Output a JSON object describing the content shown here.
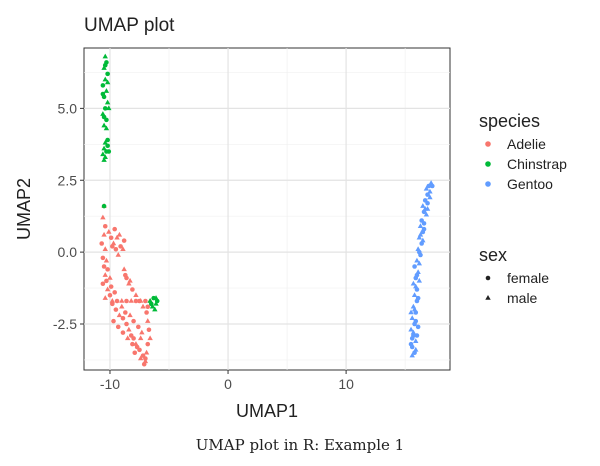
{
  "chart_data": {
    "type": "scatter",
    "title": "UMAP plot",
    "xlabel": "UMAP1",
    "ylabel": "UMAP2",
    "xlim": [
      -12.2,
      18.8
    ],
    "ylim": [
      -4.1,
      7.1
    ],
    "x_ticks": [
      -10,
      0,
      10
    ],
    "y_ticks": [
      -2.5,
      0.0,
      2.5,
      5.0
    ],
    "x_tick_labels": [
      "-10",
      "0",
      "10"
    ],
    "y_tick_labels": [
      "-2.5",
      "0.0",
      "2.5",
      "5.0"
    ],
    "grid": true,
    "legend_placement": "right",
    "color_legend": {
      "title": "species",
      "entries": [
        {
          "label": "Adelie",
          "color": "#F8766D"
        },
        {
          "label": "Chinstrap",
          "color": "#00BA38"
        },
        {
          "label": "Gentoo",
          "color": "#619CFF"
        }
      ]
    },
    "shape_legend": {
      "title": "sex",
      "entries": [
        {
          "label": "female",
          "shape": "circle"
        },
        {
          "label": "male",
          "shape": "triangle"
        }
      ]
    },
    "series": [
      {
        "name": "Adelie",
        "color": "#F8766D",
        "points": [
          [
            -10.5,
            1.6,
            "m"
          ],
          [
            -10.6,
            1.2,
            "m"
          ],
          [
            -10.4,
            0.9,
            "f"
          ],
          [
            -10.5,
            0.6,
            "m"
          ],
          [
            -10.7,
            0.3,
            "f"
          ],
          [
            -10.4,
            0.1,
            "m"
          ],
          [
            -10.6,
            -0.2,
            "f"
          ],
          [
            -10.5,
            -0.5,
            "f"
          ],
          [
            -10.4,
            -0.8,
            "m"
          ],
          [
            -10.3,
            -1.0,
            "f"
          ],
          [
            -10.6,
            -1.1,
            "f"
          ],
          [
            -10.2,
            -1.3,
            "m"
          ],
          [
            -10.0,
            -1.5,
            "f"
          ],
          [
            -10.4,
            -1.6,
            "m"
          ],
          [
            -9.8,
            -1.8,
            "f"
          ],
          [
            -9.5,
            -2.0,
            "f"
          ],
          [
            -9.2,
            -2.2,
            "m"
          ],
          [
            -8.9,
            -2.3,
            "f"
          ],
          [
            -8.6,
            -2.5,
            "f"
          ],
          [
            -8.4,
            -2.7,
            "m"
          ],
          [
            -8.2,
            -2.9,
            "f"
          ],
          [
            -8.0,
            -3.0,
            "f"
          ],
          [
            -7.8,
            -3.2,
            "m"
          ],
          [
            -7.5,
            -3.4,
            "f"
          ],
          [
            -7.2,
            -3.6,
            "f"
          ],
          [
            -7.0,
            -3.8,
            "m"
          ],
          [
            -7.1,
            -3.9,
            "f"
          ],
          [
            -10.1,
            0.7,
            "m"
          ],
          [
            -9.9,
            0.5,
            "f"
          ],
          [
            -9.7,
            0.3,
            "m"
          ],
          [
            -9.5,
            0.1,
            "f"
          ],
          [
            -9.3,
            -0.1,
            "m"
          ],
          [
            -9.1,
            0.2,
            "f"
          ],
          [
            -9.4,
            0.5,
            "m"
          ],
          [
            -9.6,
            0.8,
            "f"
          ],
          [
            -9.2,
            0.6,
            "m"
          ],
          [
            -8.8,
            0.4,
            "f"
          ],
          [
            -8.9,
            0.1,
            "m"
          ],
          [
            -9.8,
            0.2,
            "f"
          ],
          [
            -8.8,
            -0.6,
            "m"
          ],
          [
            -8.6,
            -0.9,
            "f"
          ],
          [
            -8.4,
            -1.1,
            "m"
          ],
          [
            -8.1,
            -1.3,
            "f"
          ],
          [
            -7.8,
            -1.5,
            "m"
          ],
          [
            -7.5,
            -1.7,
            "f"
          ],
          [
            -7.2,
            -1.9,
            "m"
          ],
          [
            -6.9,
            -2.1,
            "f"
          ],
          [
            -6.8,
            -2.4,
            "m"
          ],
          [
            -6.7,
            -2.7,
            "f"
          ],
          [
            -6.6,
            -3.0,
            "m"
          ],
          [
            -6.8,
            -3.2,
            "f"
          ],
          [
            -6.9,
            -3.5,
            "m"
          ],
          [
            -7.0,
            -3.7,
            "f"
          ],
          [
            -9.8,
            -1.7,
            "m"
          ],
          [
            -9.4,
            -1.7,
            "f"
          ],
          [
            -9.0,
            -1.7,
            "m"
          ],
          [
            -8.6,
            -1.7,
            "f"
          ],
          [
            -8.2,
            -1.7,
            "m"
          ],
          [
            -7.8,
            -1.7,
            "f"
          ],
          [
            -7.4,
            -1.7,
            "m"
          ],
          [
            -7.0,
            -1.7,
            "f"
          ],
          [
            -6.6,
            -1.7,
            "m"
          ],
          [
            -9.7,
            -2.4,
            "f"
          ],
          [
            -9.3,
            -2.6,
            "f"
          ],
          [
            -8.9,
            -2.8,
            "f"
          ],
          [
            -8.5,
            -3.0,
            "m"
          ],
          [
            -8.1,
            -3.2,
            "f"
          ],
          [
            -7.7,
            -3.3,
            "f"
          ],
          [
            -7.4,
            -3.0,
            "m"
          ],
          [
            -7.6,
            -2.6,
            "f"
          ],
          [
            -8.0,
            -2.4,
            "f"
          ],
          [
            -7.3,
            -2.8,
            "m"
          ],
          [
            -7.9,
            -3.5,
            "f"
          ],
          [
            -7.4,
            -3.7,
            "m"
          ],
          [
            -10.2,
            -0.6,
            "f"
          ],
          [
            -10.0,
            -0.9,
            "m"
          ],
          [
            -9.9,
            -1.2,
            "f"
          ],
          [
            -10.3,
            -0.3,
            "m"
          ],
          [
            -9.6,
            -1.4,
            "f"
          ],
          [
            -9.0,
            -1.9,
            "m"
          ],
          [
            -8.7,
            -2.1,
            "f"
          ],
          [
            -8.3,
            -2.2,
            "m"
          ],
          [
            -8.7,
            -0.8,
            "f"
          ],
          [
            -8.3,
            -1.0,
            "m"
          ],
          [
            -6.8,
            -1.9,
            "f"
          ]
        ]
      },
      {
        "name": "Chinstrap",
        "color": "#00BA38",
        "points": [
          [
            -10.4,
            6.8,
            "m"
          ],
          [
            -10.3,
            6.6,
            "f"
          ],
          [
            -10.5,
            6.4,
            "m"
          ],
          [
            -10.2,
            6.2,
            "f"
          ],
          [
            -10.4,
            6.0,
            "m"
          ],
          [
            -10.6,
            5.8,
            "f"
          ],
          [
            -10.3,
            5.6,
            "m"
          ],
          [
            -10.5,
            5.4,
            "f"
          ],
          [
            -10.2,
            5.2,
            "m"
          ],
          [
            -10.4,
            5.0,
            "f"
          ],
          [
            -10.6,
            4.8,
            "m"
          ],
          [
            -10.3,
            4.6,
            "f"
          ],
          [
            -10.5,
            4.4,
            "m"
          ],
          [
            -10.4,
            6.5,
            "f"
          ],
          [
            -10.2,
            5.9,
            "m"
          ],
          [
            -10.6,
            5.5,
            "f"
          ],
          [
            -10.1,
            5.0,
            "m"
          ],
          [
            -10.5,
            4.7,
            "f"
          ],
          [
            -10.3,
            4.3,
            "m"
          ],
          [
            -10.4,
            3.8,
            "m"
          ],
          [
            -10.2,
            3.7,
            "f"
          ],
          [
            -10.5,
            3.6,
            "m"
          ],
          [
            -10.3,
            3.5,
            "f"
          ],
          [
            -10.6,
            3.4,
            "m"
          ],
          [
            -10.1,
            3.5,
            "f"
          ],
          [
            -10.4,
            3.3,
            "m"
          ],
          [
            -10.2,
            3.9,
            "f"
          ],
          [
            -10.5,
            3.2,
            "m"
          ],
          [
            -10.5,
            1.6,
            "f"
          ],
          [
            -6.6,
            -1.7,
            "m"
          ],
          [
            -6.3,
            -1.6,
            "f"
          ],
          [
            -6.1,
            -1.8,
            "m"
          ],
          [
            -6.4,
            -1.9,
            "m"
          ],
          [
            -6.0,
            -1.7,
            "f"
          ],
          [
            -6.2,
            -2.0,
            "m"
          ],
          [
            -6.5,
            -1.8,
            "f"
          ],
          [
            -6.1,
            -1.6,
            "m"
          ]
        ]
      },
      {
        "name": "Gentoo",
        "color": "#619CFF",
        "points": [
          [
            17.2,
            2.4,
            "m"
          ],
          [
            17.0,
            2.3,
            "f"
          ],
          [
            16.8,
            2.2,
            "m"
          ],
          [
            16.9,
            2.0,
            "f"
          ],
          [
            17.1,
            1.9,
            "m"
          ],
          [
            16.7,
            1.8,
            "f"
          ],
          [
            16.5,
            1.6,
            "m"
          ],
          [
            16.6,
            1.4,
            "f"
          ],
          [
            16.8,
            1.3,
            "m"
          ],
          [
            16.4,
            1.1,
            "f"
          ],
          [
            16.3,
            0.9,
            "m"
          ],
          [
            16.5,
            0.7,
            "f"
          ],
          [
            16.2,
            0.5,
            "m"
          ],
          [
            16.4,
            0.3,
            "f"
          ],
          [
            16.1,
            0.1,
            "m"
          ],
          [
            16.3,
            -0.1,
            "f"
          ],
          [
            16.0,
            -0.3,
            "m"
          ],
          [
            15.8,
            -0.5,
            "f"
          ],
          [
            16.1,
            -0.7,
            "m"
          ],
          [
            15.9,
            -0.9,
            "f"
          ],
          [
            15.7,
            -1.1,
            "m"
          ],
          [
            16.0,
            -1.3,
            "f"
          ],
          [
            15.8,
            -1.5,
            "m"
          ],
          [
            16.0,
            -1.7,
            "f"
          ],
          [
            15.7,
            -1.9,
            "m"
          ],
          [
            15.9,
            -2.1,
            "f"
          ],
          [
            15.6,
            -2.3,
            "m"
          ],
          [
            15.8,
            -2.5,
            "f"
          ],
          [
            15.5,
            -2.7,
            "m"
          ],
          [
            15.7,
            -2.9,
            "f"
          ],
          [
            15.9,
            -3.1,
            "m"
          ],
          [
            15.6,
            -3.3,
            "f"
          ],
          [
            15.8,
            -3.5,
            "f"
          ],
          [
            15.6,
            -3.6,
            "m"
          ],
          [
            17.3,
            2.3,
            "f"
          ],
          [
            17.1,
            2.1,
            "m"
          ],
          [
            16.9,
            1.7,
            "f"
          ],
          [
            16.7,
            1.5,
            "m"
          ],
          [
            16.6,
            1.0,
            "f"
          ],
          [
            16.5,
            0.4,
            "m"
          ],
          [
            16.2,
            0.0,
            "f"
          ],
          [
            16.2,
            -0.4,
            "m"
          ],
          [
            16.0,
            -0.8,
            "f"
          ],
          [
            15.9,
            -1.2,
            "m"
          ],
          [
            16.1,
            -1.6,
            "f"
          ],
          [
            15.8,
            -2.0,
            "m"
          ],
          [
            15.9,
            -2.4,
            "f"
          ],
          [
            15.7,
            -2.8,
            "m"
          ],
          [
            15.6,
            -3.0,
            "f"
          ],
          [
            15.9,
            -3.4,
            "m"
          ],
          [
            16.1,
            -2.6,
            "f"
          ],
          [
            16.2,
            -1.0,
            "m"
          ],
          [
            16.6,
            0.8,
            "f"
          ],
          [
            16.9,
            1.5,
            "m"
          ],
          [
            15.5,
            -3.2,
            "f"
          ],
          [
            15.5,
            -2.1,
            "m"
          ],
          [
            16.0,
            -2.9,
            "f"
          ],
          [
            16.3,
            0.6,
            "m"
          ]
        ]
      }
    ]
  },
  "caption": "UMAP plot in R: Example 1"
}
